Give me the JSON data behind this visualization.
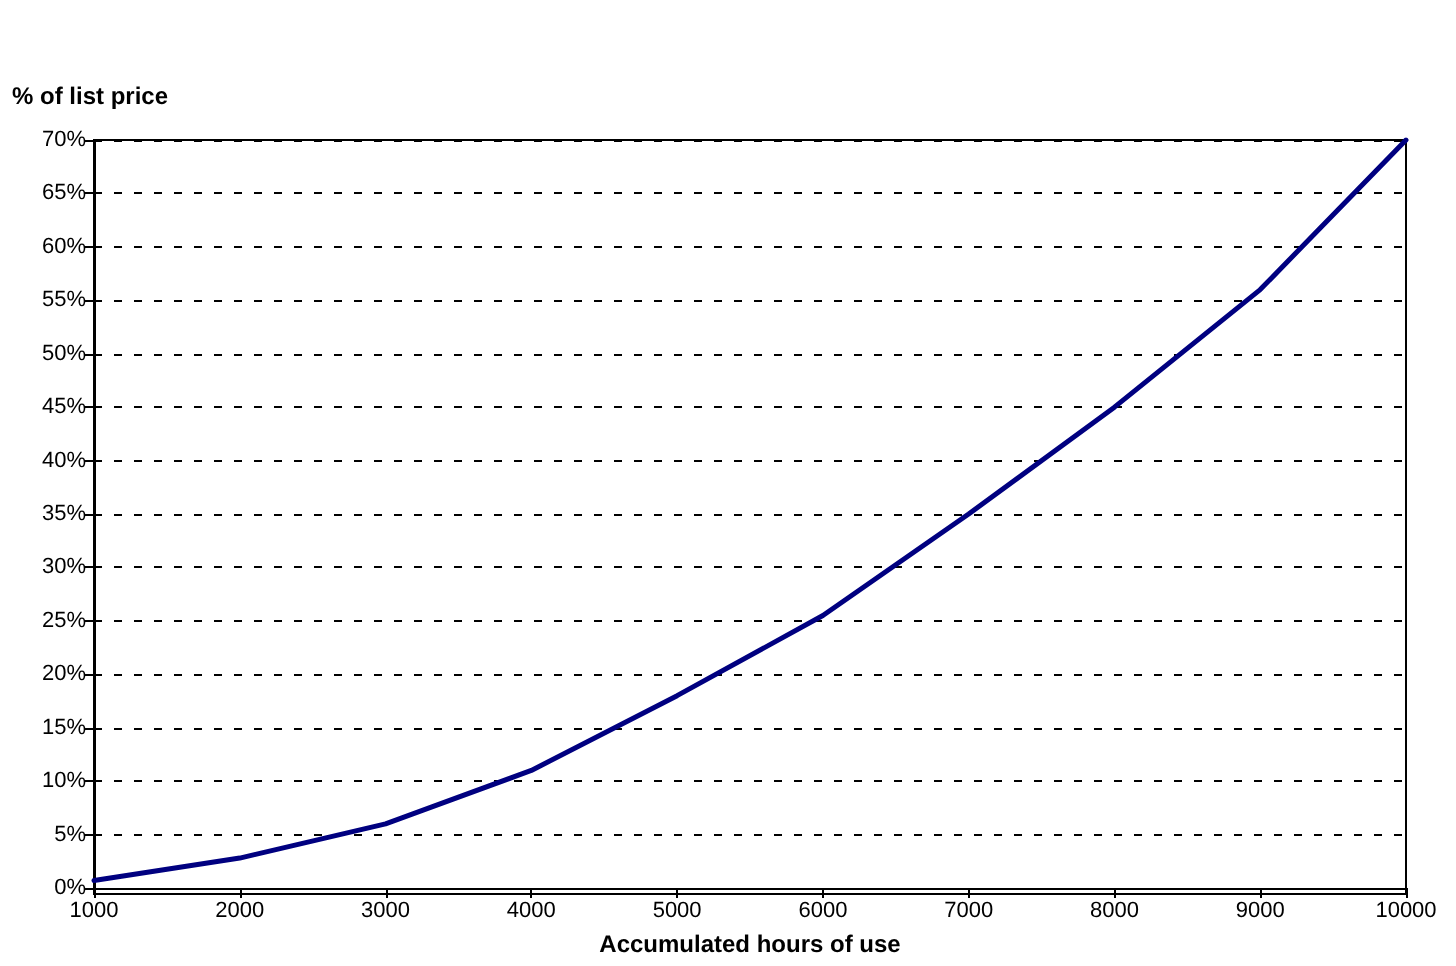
{
  "chart_data": {
    "type": "line",
    "ylabel": "% of list price",
    "xlabel": "Accumulated hours of use",
    "x": [
      1000,
      2000,
      3000,
      4000,
      5000,
      6000,
      7000,
      8000,
      9000,
      10000
    ],
    "series": [
      {
        "color": "#000080",
        "values": [
          0.7,
          2.8,
          6,
          11,
          18,
          25.5,
          35,
          45,
          56,
          70
        ]
      }
    ],
    "xlim": [
      1000,
      10000
    ],
    "xticks": [
      1000,
      2000,
      3000,
      4000,
      5000,
      6000,
      7000,
      8000,
      9000,
      10000
    ],
    "ylim": [
      0,
      70
    ],
    "yticks": [
      {
        "value": 0,
        "label": "0%"
      },
      {
        "value": 5,
        "label": "5%"
      },
      {
        "value": 10,
        "label": "10%"
      },
      {
        "value": 15,
        "label": "15%"
      },
      {
        "value": 20,
        "label": "20%"
      },
      {
        "value": 25,
        "label": "25%"
      },
      {
        "value": 30,
        "label": "30%"
      },
      {
        "value": 35,
        "label": "35%"
      },
      {
        "value": 40,
        "label": "40%"
      },
      {
        "value": 45,
        "label": "45%"
      },
      {
        "value": 50,
        "label": "50%"
      },
      {
        "value": 55,
        "label": "55%"
      },
      {
        "value": 60,
        "label": "60%"
      },
      {
        "value": 65,
        "label": "65%"
      },
      {
        "value": 70,
        "label": "70%"
      }
    ],
    "grid": "y",
    "marker": "none",
    "line_style": "solid"
  }
}
